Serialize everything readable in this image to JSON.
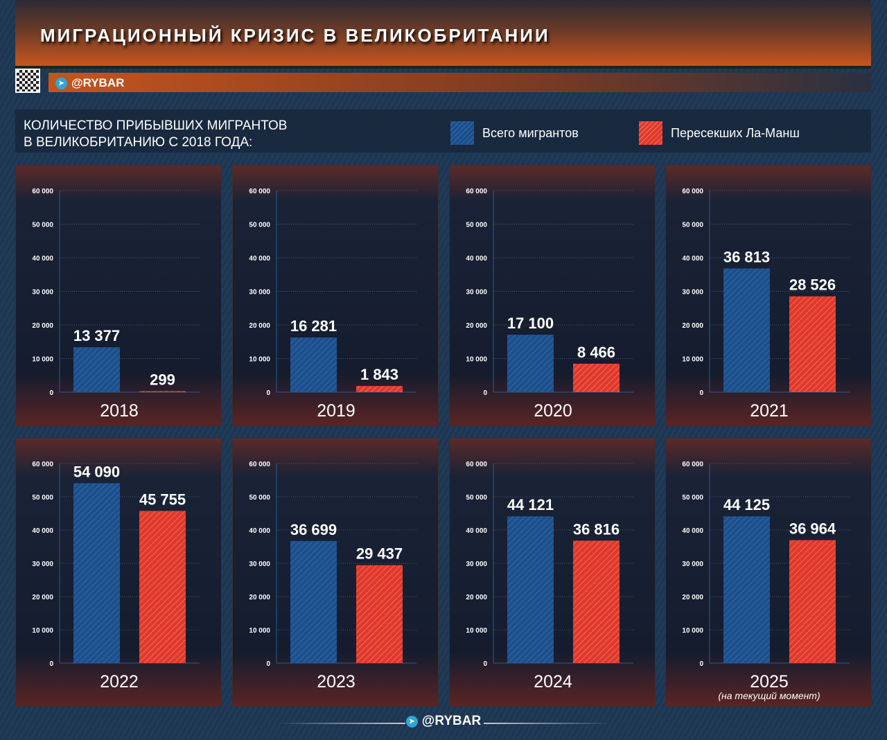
{
  "header": {
    "title": "МИГРАЦИОННЫЙ КРИЗИС В ВЕЛИКОБРИТАНИИ",
    "brand": "@RYBAR"
  },
  "colors": {
    "total": "#1d4f8a",
    "channel": "#e0392b"
  },
  "chart_data": {
    "type": "bar",
    "title": "КОЛИЧЕСТВО ПРИБЫВШИХ МИГРАНТОВ В ВЕЛИКОБРИТАНИЮ С 2018 ГОДА:",
    "title_lines": [
      "КОЛИЧЕСТВО ПРИБЫВШИХ МИГРАНТОВ",
      "В ВЕЛИКОБРИТАНИЮ С 2018 ГОДА:"
    ],
    "ylim": [
      0,
      60000
    ],
    "yticks": [
      "0",
      "10 000",
      "20 000",
      "30 000",
      "40 000",
      "50 000",
      "60 000"
    ],
    "grid": true,
    "legend_position": "top-right",
    "series": [
      {
        "name": "Всего мигрантов"
      },
      {
        "name": "Пересекших Ла-Манш"
      }
    ],
    "panels": [
      {
        "year": "2018",
        "note": "",
        "values": [
          13377,
          299
        ],
        "labels": [
          "13 377",
          "299"
        ]
      },
      {
        "year": "2019",
        "note": "",
        "values": [
          16281,
          1843
        ],
        "labels": [
          "16 281",
          "1 843"
        ]
      },
      {
        "year": "2020",
        "note": "",
        "values": [
          17100,
          8466
        ],
        "labels": [
          "17 100",
          "8 466"
        ]
      },
      {
        "year": "2021",
        "note": "",
        "values": [
          36813,
          28526
        ],
        "labels": [
          "36 813",
          "28 526"
        ]
      },
      {
        "year": "2022",
        "note": "",
        "values": [
          54090,
          45755
        ],
        "labels": [
          "54 090",
          "45 755"
        ]
      },
      {
        "year": "2023",
        "note": "",
        "values": [
          36699,
          29437
        ],
        "labels": [
          "36 699",
          "29 437"
        ]
      },
      {
        "year": "2024",
        "note": "",
        "values": [
          44121,
          36816
        ],
        "labels": [
          "44 121",
          "36 816"
        ]
      },
      {
        "year": "2025",
        "note": "(на текущий момент)",
        "values": [
          44125,
          36964
        ],
        "labels": [
          "44 125",
          "36 964"
        ]
      }
    ]
  },
  "footer": {
    "brand": "@RYBAR"
  }
}
